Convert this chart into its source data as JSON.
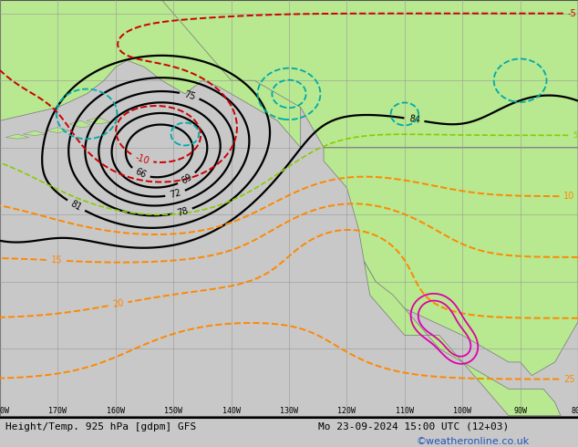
{
  "title_left": "Height/Temp. 925 hPa [gdpm] GFS",
  "title_right": "Mo 23-09-2024 15:00 UTC (12+03)",
  "watermark": "©weatheronline.co.uk",
  "bg_color": "#c8c8c8",
  "land_color": "#b8e890",
  "land_color2": "#d0f0a0",
  "water_color": "#c8c8c8",
  "contour_color_black": "#000000",
  "contour_color_orange": "#ff8800",
  "contour_color_red": "#cc0000",
  "contour_color_cyan": "#00aaaa",
  "contour_color_green": "#88cc00",
  "contour_color_magenta": "#dd00aa",
  "grid_color": "#999999",
  "text_color_bottom": "#2255bb",
  "font_size_title": 8,
  "font_size_watermark": 8,
  "figsize": [
    6.34,
    4.9
  ],
  "dpi": 100,
  "lon_min": -180,
  "lon_max": -80,
  "lat_min": 10,
  "lat_max": 72
}
